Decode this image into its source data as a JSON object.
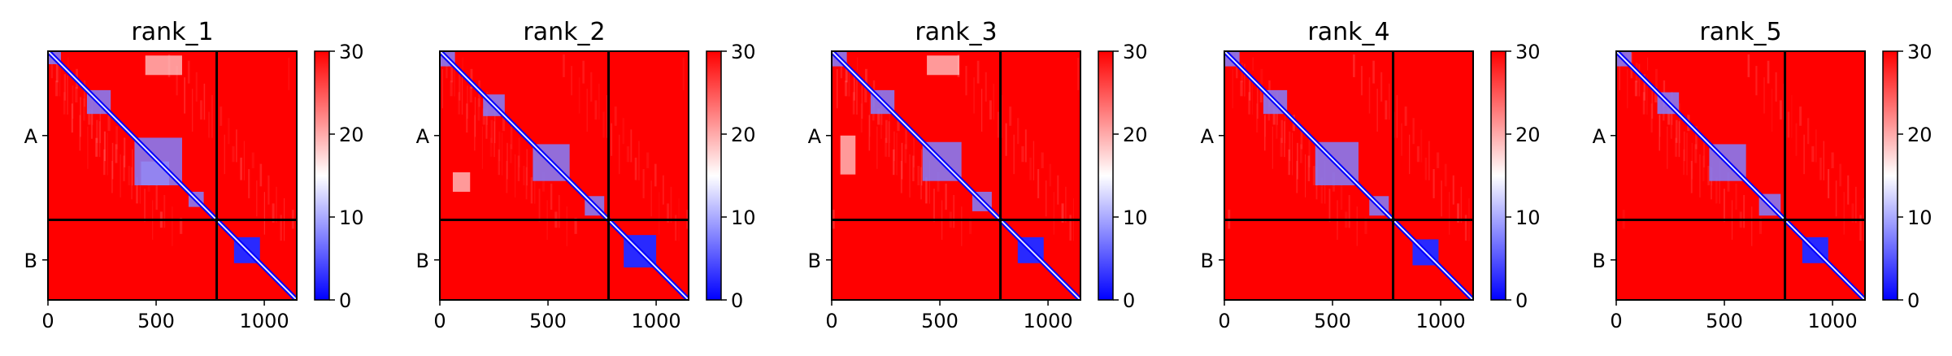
{
  "chart_data": {
    "type": "heatmap",
    "colormap": {
      "low": "#0000ff",
      "mid": "#ffffff",
      "high": "#ff0000"
    },
    "vmin": 0,
    "vmax": 30,
    "colorbar_ticks": [
      "0",
      "10",
      "20",
      "30"
    ],
    "chain_labels": [
      "A",
      "B"
    ],
    "chain_boundary": 780,
    "sequence_length": 1150,
    "x_ticks": [
      "0",
      "500",
      "1000"
    ],
    "x_tick_values": [
      0,
      500,
      1000
    ],
    "panels": [
      {
        "title": "rank_1",
        "blocks": [
          [
            0,
            60
          ],
          [
            180,
            290
          ],
          [
            400,
            620
          ],
          [
            650,
            720
          ],
          [
            860,
            980
          ]
        ],
        "off_diagonal_patches": [
          [
            [
              20,
              110
            ],
            [
              450,
              620
            ]
          ],
          [
            [
              510,
              620
            ],
            [
              430,
              560
            ]
          ]
        ],
        "stripes": [
          [
            1.0,
            0.5
          ],
          [
            0.9,
            0.4
          ]
        ]
      },
      {
        "title": "rank_2",
        "blocks": [
          [
            0,
            70
          ],
          [
            200,
            300
          ],
          [
            430,
            600
          ],
          [
            670,
            760
          ],
          [
            850,
            1000
          ]
        ],
        "off_diagonal_patches": [
          [
            [
              560,
              650
            ],
            [
              60,
              140
            ]
          ]
        ],
        "stripes": [
          [
            0.6,
            0.35
          ],
          [
            0.8,
            0.35
          ]
        ]
      },
      {
        "title": "rank_3",
        "blocks": [
          [
            0,
            70
          ],
          [
            180,
            290
          ],
          [
            420,
            600
          ],
          [
            650,
            740
          ],
          [
            860,
            980
          ]
        ],
        "off_diagonal_patches": [
          [
            [
              20,
              110
            ],
            [
              440,
              590
            ]
          ],
          [
            [
              390,
              570
            ],
            [
              40,
              110
            ]
          ]
        ],
        "stripes": [
          [
            1.0,
            0.5
          ],
          [
            0.8,
            0.4
          ]
        ]
      },
      {
        "title": "rank_4",
        "blocks": [
          [
            0,
            70
          ],
          [
            180,
            290
          ],
          [
            420,
            620
          ],
          [
            670,
            760
          ],
          [
            870,
            990
          ]
        ],
        "off_diagonal_patches": [],
        "stripes": [
          [
            0.8,
            0.45
          ],
          [
            0.8,
            0.4
          ]
        ]
      },
      {
        "title": "rank_5",
        "blocks": [
          [
            0,
            70
          ],
          [
            190,
            290
          ],
          [
            430,
            600
          ],
          [
            660,
            760
          ],
          [
            860,
            980
          ]
        ],
        "off_diagonal_patches": [],
        "stripes": [
          [
            0.8,
            0.45
          ],
          [
            0.9,
            0.4
          ]
        ]
      }
    ]
  }
}
